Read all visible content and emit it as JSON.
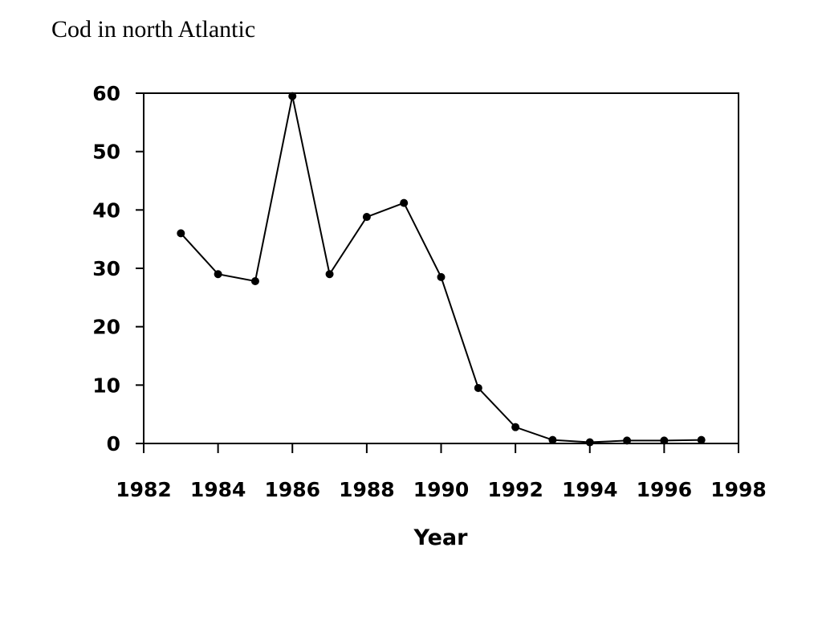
{
  "slide": {
    "title": "Cod in north Atlantic"
  },
  "chart_data": {
    "type": "line",
    "title": "",
    "xlabel": "Year",
    "ylabel": "",
    "xlim": [
      1982,
      1998
    ],
    "ylim": [
      0,
      60
    ],
    "xticks": [
      1982,
      1984,
      1986,
      1988,
      1990,
      1992,
      1994,
      1996,
      1998
    ],
    "yticks": [
      0,
      10,
      20,
      30,
      40,
      50,
      60
    ],
    "grid": false,
    "legend": "none",
    "series": [
      {
        "color": "#000000",
        "x": [
          1983,
          1984,
          1985,
          1986,
          1987,
          1988,
          1989,
          1990,
          1991,
          1992,
          1993,
          1994,
          1995,
          1996,
          1997
        ],
        "y": [
          36,
          29,
          27.8,
          59.5,
          29,
          38.8,
          41.2,
          28.5,
          9.5,
          2.8,
          0.6,
          0.2,
          0.5,
          0.5,
          0.6
        ]
      }
    ]
  }
}
